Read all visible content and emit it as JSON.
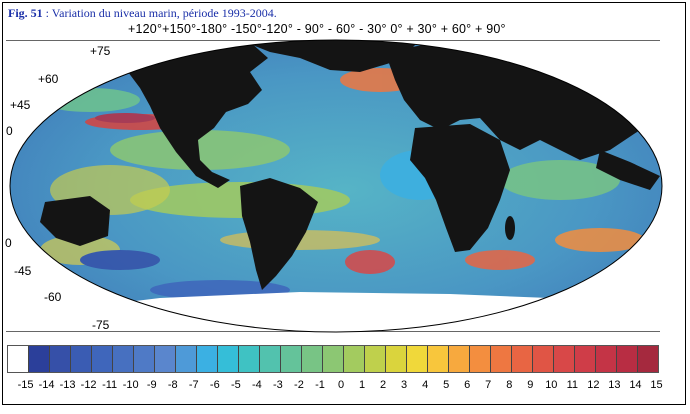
{
  "caption": {
    "prefix": "Fig. 51",
    "text": " : Variation du niveau marin, période 1993-2004."
  },
  "longitude_labels": "+120°+150°-180° -150°-120° - 90° - 60° - 30°   0° + 30° + 60° + 90°",
  "latitude_labels": [
    {
      "id": "lat-75n",
      "text": "+75"
    },
    {
      "id": "lat-60n",
      "text": "+60"
    },
    {
      "id": "lat-45n",
      "text": "+45"
    },
    {
      "id": "lat-0a",
      "text": "0"
    },
    {
      "id": "lat-0b",
      "text": "0"
    },
    {
      "id": "lat-45s",
      "text": "-45"
    },
    {
      "id": "lat-60s",
      "text": "-60"
    },
    {
      "id": "lat-75s",
      "text": "-75"
    }
  ],
  "legend": {
    "values": [
      "-15",
      "-14",
      "-13",
      "-12",
      "-11",
      "-10",
      "-9",
      "-8",
      "-7",
      "-6",
      "-5",
      "-4",
      "-3",
      "-2",
      "-1",
      "0",
      "1",
      "2",
      "3",
      "4",
      "5",
      "6",
      "7",
      "8",
      "9",
      "10",
      "11",
      "12",
      "13",
      "14",
      "15"
    ],
    "colors": [
      "#ffffff",
      "#2b3f9a",
      "#3650a8",
      "#3a5cb3",
      "#3f66bb",
      "#4770c0",
      "#4f7ac6",
      "#5a86cd",
      "#4e9ad8",
      "#3bb0e3",
      "#35bed8",
      "#3fc2c3",
      "#52c2ae",
      "#64c39a",
      "#78c485",
      "#8cc773",
      "#a3cb5f",
      "#bfd04c",
      "#dad43d",
      "#f0d83a",
      "#f8c63c",
      "#f7a93e",
      "#f38e3f",
      "#ee7741",
      "#e86543",
      "#e05545",
      "#d84848",
      "#cf3d48",
      "#c43446",
      "#b82d43",
      "#a5293e"
    ]
  }
}
